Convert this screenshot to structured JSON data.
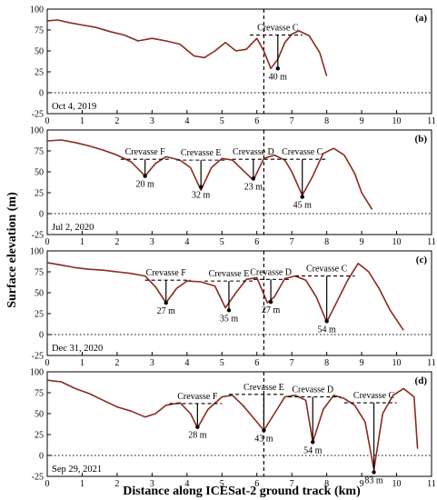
{
  "figure": {
    "ylabel": "Surface elevation (m)",
    "xlabel": "Distance along ICESat-2 ground track (km)"
  },
  "style": {
    "profile_color": "#8b2a1e",
    "axis_color": "#000000"
  },
  "chart_data": [
    {
      "type": "line",
      "panel": "(a)",
      "date": "Oct 4, 2019",
      "xlim": [
        0,
        11
      ],
      "ylim": [
        -25,
        100
      ],
      "xticks": [
        0,
        1,
        2,
        3,
        4,
        5,
        6,
        7,
        8,
        9,
        10,
        11
      ],
      "yticks": [
        -25,
        0,
        25,
        50,
        75,
        100
      ],
      "vline_x": 6.2,
      "series": [
        {
          "x": [
            0,
            0.3,
            0.6,
            1.0,
            1.4,
            1.8,
            2.2,
            2.6,
            3.0,
            3.4,
            3.8,
            4.2,
            4.5,
            4.8,
            5.1,
            5.4,
            5.7,
            6.0,
            6.2,
            6.4,
            6.6,
            6.8,
            7.0,
            7.2,
            7.5,
            7.8,
            8.0
          ],
          "y": [
            86,
            87,
            84,
            81,
            78,
            73,
            69,
            62,
            65,
            62,
            58,
            44,
            42,
            50,
            60,
            50,
            52,
            65,
            50,
            29,
            40,
            60,
            70,
            74,
            68,
            48,
            20
          ]
        }
      ],
      "crevasses": [
        {
          "name": "Crevasse C",
          "depth": "40 m",
          "x": 6.6,
          "bottom": 29,
          "rim": 69,
          "rim_x": [
            5.8,
            7.3
          ]
        }
      ]
    },
    {
      "type": "line",
      "panel": "(b)",
      "date": "Jul 2, 2020",
      "xlim": [
        0,
        11
      ],
      "ylim": [
        -25,
        100
      ],
      "xticks": [
        0,
        1,
        2,
        3,
        4,
        5,
        6,
        7,
        8,
        9,
        10,
        11
      ],
      "yticks": [
        -25,
        0,
        25,
        50,
        75,
        100
      ],
      "vline_x": 6.2,
      "series": [
        {
          "x": [
            0,
            0.4,
            0.8,
            1.2,
            1.6,
            2.0,
            2.4,
            2.8,
            3.1,
            3.4,
            3.8,
            4.1,
            4.4,
            4.7,
            5.0,
            5.3,
            5.6,
            5.9,
            6.2,
            6.5,
            6.8,
            7.0,
            7.3,
            7.6,
            7.9,
            8.2,
            8.5,
            8.8,
            9.0,
            9.3
          ],
          "y": [
            87,
            88,
            85,
            81,
            76,
            70,
            62,
            45,
            60,
            68,
            64,
            55,
            28,
            55,
            66,
            64,
            52,
            40,
            66,
            70,
            64,
            50,
            22,
            45,
            72,
            78,
            70,
            48,
            25,
            5
          ]
        }
      ],
      "crevasses": [
        {
          "name": "Crevasse F",
          "depth": "20 m",
          "x": 2.8,
          "bottom": 45,
          "rim": 65,
          "rim_x": [
            2.1,
            3.5
          ]
        },
        {
          "name": "Crevasse E",
          "depth": "32 m",
          "x": 4.4,
          "bottom": 32,
          "rim": 64,
          "rim_x": [
            3.7,
            5.1
          ]
        },
        {
          "name": "Crevasse D",
          "depth": "23 m",
          "x": 5.9,
          "bottom": 42,
          "rim": 65,
          "rim_x": [
            5.3,
            6.4
          ]
        },
        {
          "name": "Crevasse C",
          "depth": "45 m",
          "x": 7.3,
          "bottom": 20,
          "rim": 65,
          "rim_x": [
            6.4,
            8.0
          ]
        }
      ]
    },
    {
      "type": "line",
      "panel": "(c)",
      "date": "Dec 31, 2020",
      "xlim": [
        0,
        11
      ],
      "ylim": [
        -25,
        100
      ],
      "xticks": [
        0,
        1,
        2,
        3,
        4,
        5,
        6,
        7,
        8,
        9,
        10,
        11
      ],
      "yticks": [
        -25,
        0,
        25,
        50,
        75,
        100
      ],
      "vline_x": 6.2,
      "series": [
        {
          "x": [
            0,
            0.4,
            0.8,
            1.2,
            1.6,
            2.0,
            2.4,
            2.8,
            3.1,
            3.4,
            3.7,
            4.0,
            4.4,
            4.8,
            5.1,
            5.4,
            5.7,
            6.0,
            6.3,
            6.5,
            6.8,
            7.1,
            7.4,
            7.7,
            8.0,
            8.3,
            8.6,
            8.9,
            9.2,
            9.5,
            9.8,
            10.2
          ],
          "y": [
            86,
            83,
            80,
            78,
            77,
            75,
            73,
            70,
            57,
            38,
            55,
            64,
            63,
            58,
            32,
            50,
            66,
            68,
            38,
            45,
            67,
            70,
            65,
            45,
            15,
            40,
            65,
            85,
            75,
            55,
            30,
            5
          ]
        }
      ],
      "crevasses": [
        {
          "name": "Crevasse F",
          "depth": "27 m",
          "x": 3.4,
          "bottom": 38,
          "rim": 65,
          "rim_x": [
            2.8,
            4.1
          ]
        },
        {
          "name": "Crevasse E",
          "depth": "35 m",
          "x": 5.2,
          "bottom": 29,
          "rim": 64,
          "rim_x": [
            4.5,
            5.9
          ]
        },
        {
          "name": "Crevasse D",
          "depth": "27 m",
          "x": 6.4,
          "bottom": 39,
          "rim": 66,
          "rim_x": [
            5.9,
            7.0
          ]
        },
        {
          "name": "Crevasse C",
          "depth": "54 m",
          "x": 8.0,
          "bottom": 16,
          "rim": 70,
          "rim_x": [
            7.1,
            8.8
          ]
        }
      ]
    },
    {
      "type": "line",
      "panel": "(d)",
      "date": "Sep 29, 2021",
      "xlim": [
        0,
        11
      ],
      "ylim": [
        -25,
        100
      ],
      "xticks": [
        0,
        1,
        2,
        3,
        4,
        5,
        6,
        7,
        8,
        9,
        10,
        11
      ],
      "yticks": [
        -25,
        0,
        25,
        50,
        75,
        100
      ],
      "vline_x": 6.2,
      "series": [
        {
          "x": [
            0,
            0.4,
            0.8,
            1.2,
            1.6,
            2.0,
            2.4,
            2.8,
            3.1,
            3.4,
            3.8,
            4.1,
            4.3,
            4.6,
            5.0,
            5.3,
            5.6,
            5.9,
            6.2,
            6.5,
            6.8,
            7.1,
            7.4,
            7.6,
            7.9,
            8.2,
            8.5,
            8.8,
            9.1,
            9.35,
            9.6,
            9.9,
            10.2,
            10.5,
            10.6
          ],
          "y": [
            90,
            88,
            80,
            74,
            66,
            58,
            53,
            46,
            50,
            60,
            63,
            50,
            33,
            55,
            70,
            72,
            60,
            45,
            30,
            50,
            70,
            72,
            66,
            16,
            55,
            72,
            68,
            60,
            40,
            -17,
            50,
            72,
            80,
            70,
            8
          ]
        }
      ],
      "crevasses": [
        {
          "name": "Crevasse F",
          "depth": "28 m",
          "x": 4.3,
          "bottom": 34,
          "rim": 62,
          "rim_x": [
            3.5,
            5.0
          ]
        },
        {
          "name": "Crevasse E",
          "depth": "43 m",
          "x": 6.2,
          "bottom": 30,
          "rim": 73,
          "rim_x": [
            5.2,
            6.8
          ]
        },
        {
          "name": "Crevasse D",
          "depth": "54 m",
          "x": 7.6,
          "bottom": 16,
          "rim": 70,
          "rim_x": [
            6.9,
            8.4
          ]
        },
        {
          "name": "Crevasse C",
          "depth": "83 m",
          "x": 9.35,
          "bottom": -20,
          "rim": 63,
          "rim_x": [
            8.5,
            10.0
          ]
        }
      ]
    }
  ]
}
